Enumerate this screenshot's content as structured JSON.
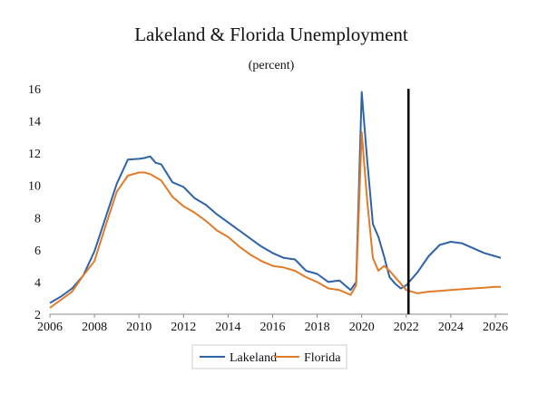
{
  "chart_data": {
    "type": "line",
    "title": "Lakeland & Florida Unemployment",
    "subtitle": "(percent)",
    "xlabel": "",
    "ylabel": "",
    "xlim": [
      2006,
      2026.5
    ],
    "ylim": [
      2,
      16
    ],
    "xticks": [
      "2006",
      "2008",
      "2010",
      "2012",
      "2014",
      "2016",
      "2018",
      "2020",
      "2022",
      "2024",
      "2026"
    ],
    "yticks": [
      "2",
      "4",
      "6",
      "8",
      "10",
      "12",
      "14",
      "16"
    ],
    "grid": false,
    "legend_position": "bottom",
    "forecast_marker_x": 2022.1,
    "colors": {
      "lakeland": "#2e63a8",
      "florida": "#e07b2a",
      "marker": "#000000"
    },
    "series": [
      {
        "name": "Lakeland",
        "color": "#2e63a8",
        "x": [
          2006.0,
          2006.5,
          2007.0,
          2007.5,
          2008.0,
          2008.5,
          2009.0,
          2009.5,
          2010.0,
          2010.25,
          2010.5,
          2010.75,
          2011.0,
          2011.5,
          2012.0,
          2012.5,
          2013.0,
          2013.5,
          2014.0,
          2014.5,
          2015.0,
          2015.5,
          2016.0,
          2016.5,
          2017.0,
          2017.5,
          2018.0,
          2018.5,
          2019.0,
          2019.5,
          2019.75,
          2020.0,
          2020.25,
          2020.5,
          2020.75,
          2021.0,
          2021.25,
          2021.5,
          2021.75,
          2022.0,
          2022.5,
          2023.0,
          2023.5,
          2024.0,
          2024.5,
          2025.0,
          2025.5,
          2026.0,
          2026.25
        ],
        "values": [
          2.7,
          3.1,
          3.6,
          4.4,
          5.9,
          8.0,
          10.1,
          11.6,
          11.65,
          11.7,
          11.8,
          11.4,
          11.3,
          10.2,
          9.9,
          9.2,
          8.8,
          8.2,
          7.7,
          7.2,
          6.7,
          6.2,
          5.8,
          5.5,
          5.4,
          4.7,
          4.5,
          4.0,
          4.1,
          3.5,
          4.0,
          15.8,
          11.5,
          7.6,
          6.8,
          5.6,
          4.3,
          3.9,
          3.6,
          3.8,
          4.6,
          5.6,
          6.3,
          6.5,
          6.4,
          6.1,
          5.8,
          5.6,
          5.5
        ]
      },
      {
        "name": "Florida",
        "color": "#e07b2a",
        "x": [
          2006.0,
          2006.5,
          2007.0,
          2007.5,
          2008.0,
          2008.5,
          2009.0,
          2009.5,
          2010.0,
          2010.25,
          2010.5,
          2010.75,
          2011.0,
          2011.5,
          2012.0,
          2012.5,
          2013.0,
          2013.5,
          2014.0,
          2014.5,
          2015.0,
          2015.5,
          2016.0,
          2016.5,
          2017.0,
          2017.5,
          2018.0,
          2018.5,
          2019.0,
          2019.5,
          2019.75,
          2020.0,
          2020.25,
          2020.5,
          2020.75,
          2021.0,
          2021.25,
          2021.5,
          2021.75,
          2022.0,
          2022.5,
          2023.0,
          2023.5,
          2024.0,
          2024.5,
          2025.0,
          2025.5,
          2026.0,
          2026.25
        ],
        "values": [
          2.4,
          2.9,
          3.4,
          4.4,
          5.3,
          7.5,
          9.6,
          10.6,
          10.8,
          10.8,
          10.7,
          10.5,
          10.3,
          9.3,
          8.7,
          8.3,
          7.8,
          7.2,
          6.8,
          6.2,
          5.7,
          5.3,
          5.0,
          4.9,
          4.7,
          4.3,
          4.0,
          3.6,
          3.5,
          3.2,
          3.8,
          13.3,
          9.0,
          5.5,
          4.7,
          5.0,
          4.7,
          4.3,
          3.9,
          3.5,
          3.3,
          3.4,
          3.45,
          3.5,
          3.55,
          3.6,
          3.65,
          3.7,
          3.7
        ]
      }
    ]
  }
}
